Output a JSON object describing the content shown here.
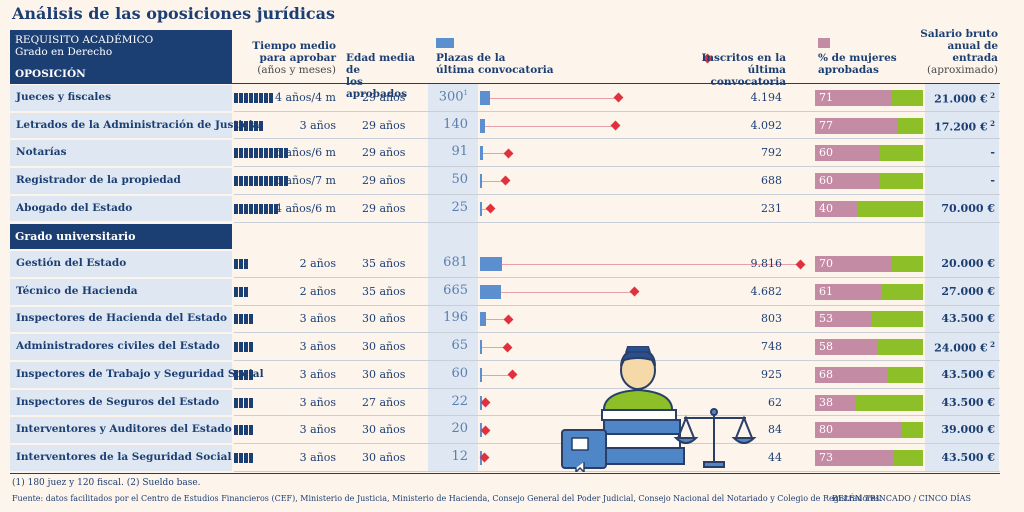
{
  "title": "Análisis de las oposiciones jurídicas",
  "header": {
    "req_line1": "REQUISITO ACADÉMICO",
    "req_line2": "Grado en Derecho",
    "oposicion": "OPOSICIÓN",
    "tiempo_1": "Tiempo medio",
    "tiempo_2": "para aprobar",
    "tiempo_3": "(años y meses)",
    "edad_1": "Edad media de",
    "edad_2": "los aprobados",
    "plazas_1": "Plazas de la",
    "plazas_2": "última convocatoria",
    "inscritos_1": "Inscritos en la",
    "inscritos_2": "última convocatoria",
    "mujeres_1": "% de mujeres",
    "mujeres_2": "aprobadas",
    "salario_1": "Salario bruto",
    "salario_2": "anual de",
    "salario_3": "entrada",
    "salario_4": "(aproximado)"
  },
  "section2": "Grado universitario",
  "colors": {
    "navy": "#1c3f73",
    "plazas": "#5b8fd0",
    "inscritos": "#e0323e",
    "mujeres": "#c48ba4",
    "hombres": "#8cbf28"
  },
  "chart_data": {
    "type": "table",
    "title": "Análisis de las oposiciones jurídicas",
    "groups": [
      "Grado en Derecho",
      "Grado universitario"
    ],
    "rows": [
      {
        "name": "Jueces y fiscales",
        "group": 0,
        "tiempo_bloques": 8,
        "tiempo": "4 años/4 m",
        "edad": "29 años",
        "plazas": 300,
        "plazas_label": "300",
        "plazas_note": "1",
        "inscritos": 4194,
        "inscritos_label": "4.194",
        "mujeres": 71,
        "salario": "21.000 €",
        "salario_note": "2"
      },
      {
        "name": "Letrados de la Administración de Justicia",
        "group": 0,
        "tiempo_bloques": 6,
        "tiempo": "3 años",
        "edad": "29 años",
        "plazas": 140,
        "plazas_label": "140",
        "plazas_note": "",
        "inscritos": 4092,
        "inscritos_label": "4.092",
        "mujeres": 77,
        "salario": "17.200 €",
        "salario_note": "2"
      },
      {
        "name": "Notarías",
        "group": 0,
        "tiempo_bloques": 11,
        "tiempo": "5 años/6 m",
        "edad": "29 años",
        "plazas": 91,
        "plazas_label": "91",
        "plazas_note": "",
        "inscritos": 792,
        "inscritos_label": "792",
        "mujeres": 60,
        "salario": "-",
        "salario_note": ""
      },
      {
        "name": "Registrador de la propiedad",
        "group": 0,
        "tiempo_bloques": 11,
        "tiempo": "5 años/7 m",
        "edad": "29 años",
        "plazas": 50,
        "plazas_label": "50",
        "plazas_note": "",
        "inscritos": 688,
        "inscritos_label": "688",
        "mujeres": 60,
        "salario": "-",
        "salario_note": ""
      },
      {
        "name": "Abogado del Estado",
        "group": 0,
        "tiempo_bloques": 9,
        "tiempo": "4 años/6 m",
        "edad": "29 años",
        "plazas": 25,
        "plazas_label": "25",
        "plazas_note": "",
        "inscritos": 231,
        "inscritos_label": "231",
        "mujeres": 40,
        "salario": "70.000 €",
        "salario_note": ""
      },
      {
        "name": "Gestión del Estado",
        "group": 1,
        "tiempo_bloques": 3,
        "tiempo": "2 años",
        "edad": "35 años",
        "plazas": 681,
        "plazas_label": "681",
        "plazas_note": "",
        "inscritos": 9816,
        "inscritos_label": "9.816",
        "mujeres": 70,
        "salario": "20.000 €",
        "salario_note": ""
      },
      {
        "name": "Técnico de Hacienda",
        "group": 1,
        "tiempo_bloques": 3,
        "tiempo": "2 años",
        "edad": "35 años",
        "plazas": 665,
        "plazas_label": "665",
        "plazas_note": "",
        "inscritos": 4682,
        "inscritos_label": "4.682",
        "mujeres": 61,
        "salario": "27.000 €",
        "salario_note": ""
      },
      {
        "name": "Inspectores de Hacienda del Estado",
        "group": 1,
        "tiempo_bloques": 4,
        "tiempo": "3 años",
        "edad": "30 años",
        "plazas": 196,
        "plazas_label": "196",
        "plazas_note": "",
        "inscritos": 803,
        "inscritos_label": "803",
        "mujeres": 53,
        "salario": "43.500 €",
        "salario_note": ""
      },
      {
        "name": "Administradores civiles del Estado",
        "group": 1,
        "tiempo_bloques": 4,
        "tiempo": "3 años",
        "edad": "30 años",
        "plazas": 65,
        "plazas_label": "65",
        "plazas_note": "",
        "inscritos": 748,
        "inscritos_label": "748",
        "mujeres": 58,
        "salario": "24.000 €",
        "salario_note": "2"
      },
      {
        "name": "Inspectores de Trabajo y Seguridad Social",
        "group": 1,
        "tiempo_bloques": 4,
        "tiempo": "3 años",
        "edad": "30 años",
        "plazas": 60,
        "plazas_label": "60",
        "plazas_note": "",
        "inscritos": 925,
        "inscritos_label": "925",
        "mujeres": 68,
        "salario": "43.500 €",
        "salario_note": ""
      },
      {
        "name": "Inspectores de Seguros del Estado",
        "group": 1,
        "tiempo_bloques": 4,
        "tiempo": "3 años",
        "edad": "27 años",
        "plazas": 22,
        "plazas_label": "22",
        "plazas_note": "",
        "inscritos": 62,
        "inscritos_label": "62",
        "mujeres": 38,
        "salario": "43.500 €",
        "salario_note": ""
      },
      {
        "name": "Interventores y Auditores del Estado",
        "group": 1,
        "tiempo_bloques": 4,
        "tiempo": "3 años",
        "edad": "30 años",
        "plazas": 20,
        "plazas_label": "20",
        "plazas_note": "",
        "inscritos": 84,
        "inscritos_label": "84",
        "mujeres": 80,
        "salario": "39.000 €",
        "salario_note": ""
      },
      {
        "name": "Interventores de la Seguridad Social",
        "group": 1,
        "tiempo_bloques": 4,
        "tiempo": "3 años",
        "edad": "30 años",
        "plazas": 12,
        "plazas_label": "12",
        "plazas_note": "",
        "inscritos": 44,
        "inscritos_label": "44",
        "mujeres": 73,
        "salario": "43.500 €",
        "salario_note": ""
      }
    ]
  },
  "footnote": "(1) 180 juez y 120 fiscal.   (2) Sueldo base.",
  "source": "Fuente: datos facilitados por el Centro de Estudios Financieros (CEF), Ministerio de Justicia, Ministerio de Hacienda, Consejo General del Poder Judicial, Consejo Nacional del Notariado y Colegio de Registradores.",
  "credit": "BELÉN TRINCADO / CINCO DÍAS"
}
